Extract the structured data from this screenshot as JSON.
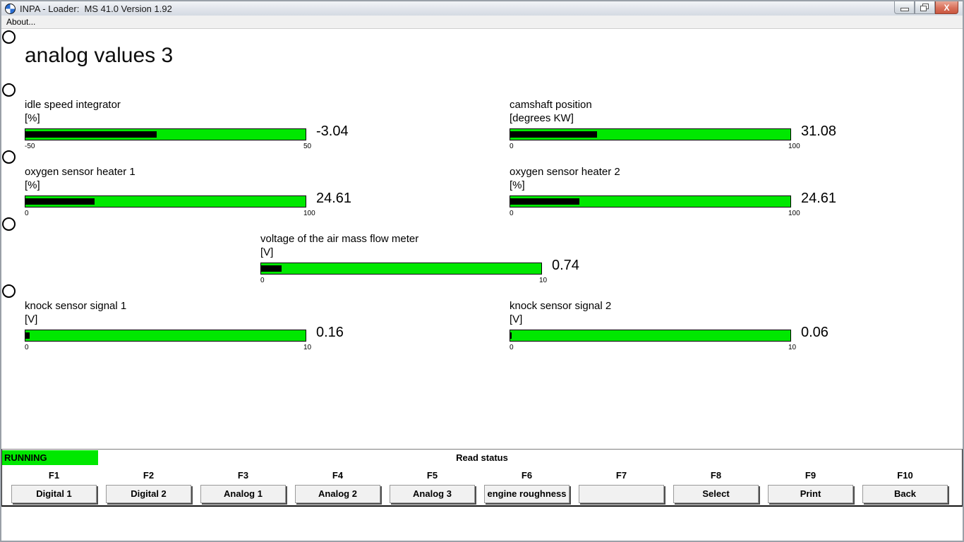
{
  "window": {
    "title": "INPA - Loader:  MS 41.0 Version 1.92",
    "menu_about": "About...",
    "close_glyph": "X"
  },
  "page": {
    "title": "analog values 3"
  },
  "colors": {
    "green": "#00e800",
    "bar_fill": "#000000",
    "close_button": "#d9705a"
  },
  "chart_data": {
    "type": "bar",
    "title": "analog values 3",
    "series": [
      {
        "name": "idle speed integrator",
        "unit": "[%]",
        "value": -3.04,
        "min": -50,
        "max": 50
      },
      {
        "name": "camshaft position",
        "unit": "[degrees KW]",
        "value": 31.08,
        "min": 0,
        "max": 100
      },
      {
        "name": "oxygen sensor heater 1",
        "unit": "[%]",
        "value": 24.61,
        "min": 0,
        "max": 100
      },
      {
        "name": "oxygen sensor heater 2",
        "unit": "[%]",
        "value": 24.61,
        "min": 0,
        "max": 100
      },
      {
        "name": "voltage of the air mass flow meter",
        "unit": "[V]",
        "value": 0.74,
        "min": 0,
        "max": 10
      },
      {
        "name": "knock sensor signal 1",
        "unit": "[V]",
        "value": 0.16,
        "min": 0,
        "max": 10
      },
      {
        "name": "knock sensor signal 2",
        "unit": "[V]",
        "value": 0.06,
        "min": 0,
        "max": 10
      }
    ]
  },
  "gauges": [
    {
      "label": "idle speed integrator",
      "unit": "[%]",
      "value": "-3.04",
      "min": "-50",
      "max": "50",
      "fill_pct": 46.96
    },
    {
      "label": "camshaft position",
      "unit": "[degrees KW]",
      "value": "31.08",
      "min": "0",
      "max": "100",
      "fill_pct": 31.08
    },
    {
      "label": "oxygen sensor heater 1",
      "unit": "[%]",
      "value": "24.61",
      "min": "0",
      "max": "100",
      "fill_pct": 24.61
    },
    {
      "label": "oxygen sensor heater 2",
      "unit": "[%]",
      "value": "24.61",
      "min": "0",
      "max": "100",
      "fill_pct": 24.61
    },
    {
      "label": "voltage of the air mass flow meter",
      "unit": "[V]",
      "value": "0.74",
      "min": "0",
      "max": "10",
      "fill_pct": 7.4
    },
    {
      "label": "knock sensor signal 1",
      "unit": "[V]",
      "value": "0.16",
      "min": "0",
      "max": "10",
      "fill_pct": 1.6
    },
    {
      "label": "knock sensor signal 2",
      "unit": "[V]",
      "value": "0.06",
      "min": "0",
      "max": "10",
      "fill_pct": 0.6
    }
  ],
  "status": {
    "state": "RUNNING",
    "message": "Read status"
  },
  "function_keys": [
    {
      "key": "F1",
      "label": "Digital 1"
    },
    {
      "key": "F2",
      "label": "Digital 2"
    },
    {
      "key": "F3",
      "label": "Analog 1"
    },
    {
      "key": "F4",
      "label": "Analog 2"
    },
    {
      "key": "F5",
      "label": "Analog 3"
    },
    {
      "key": "F6",
      "label": "engine roughness"
    },
    {
      "key": "F7",
      "label": ""
    },
    {
      "key": "F8",
      "label": "Select"
    },
    {
      "key": "F9",
      "label": "Print"
    },
    {
      "key": "F10",
      "label": "Back"
    }
  ]
}
